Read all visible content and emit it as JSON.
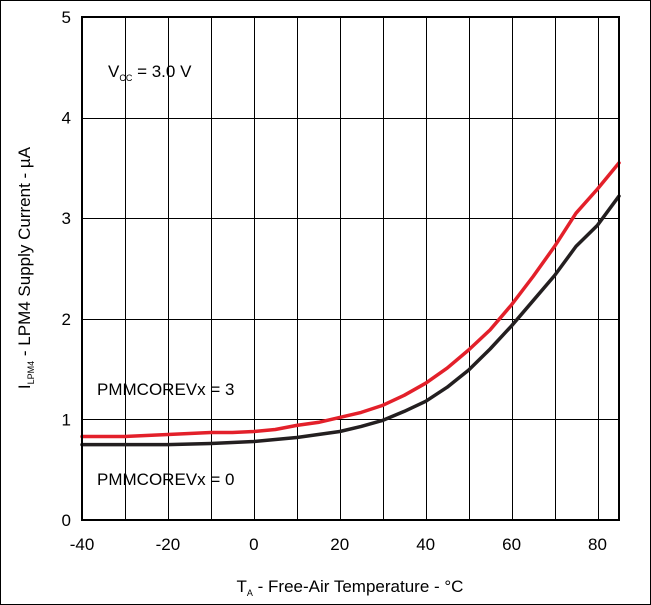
{
  "chart_data": {
    "type": "line",
    "xlabel": {
      "main": "T",
      "sub": "A",
      "rest": " - Free-Air Temperature - °C"
    },
    "ylabel": {
      "main": "I",
      "sub": "LPM4",
      "rest": " - LPM4 Supply Current - µA"
    },
    "xlim": [
      -40,
      85
    ],
    "ylim": [
      0,
      5
    ],
    "xticks": [
      -40,
      -20,
      0,
      20,
      40,
      60,
      80
    ],
    "xtick_labels": [
      "-40",
      "-20",
      "0",
      "20",
      "40",
      "60",
      "80"
    ],
    "yticks": [
      0,
      1,
      2,
      3,
      4,
      5
    ],
    "ytick_labels": [
      "0",
      "1",
      "2",
      "3",
      "4",
      "5"
    ],
    "grid": true,
    "annotations": {
      "vcc": {
        "main": "V",
        "sub": "CC",
        "rest": " = 3.0 V"
      },
      "series_red": "PMMCOREVx = 3",
      "series_black": "PMMCOREVx = 0"
    },
    "series": [
      {
        "name": "PMMCOREVx = 3",
        "color": "#e3202a",
        "x": [
          -40,
          -30,
          -20,
          -10,
          -5,
          0,
          5,
          10,
          15,
          20,
          25,
          30,
          35,
          40,
          45,
          50,
          55,
          60,
          65,
          70,
          75,
          80,
          85
        ],
        "y": [
          0.83,
          0.83,
          0.85,
          0.87,
          0.87,
          0.88,
          0.9,
          0.94,
          0.97,
          1.02,
          1.07,
          1.14,
          1.24,
          1.36,
          1.51,
          1.69,
          1.89,
          2.14,
          2.42,
          2.72,
          3.05,
          3.29,
          3.55
        ]
      },
      {
        "name": "PMMCOREVx = 0",
        "color": "#231f20",
        "x": [
          -40,
          -30,
          -20,
          -10,
          -5,
          0,
          5,
          10,
          15,
          20,
          25,
          30,
          35,
          40,
          45,
          50,
          55,
          60,
          65,
          70,
          75,
          80,
          85
        ],
        "y": [
          0.75,
          0.75,
          0.75,
          0.76,
          0.77,
          0.78,
          0.8,
          0.82,
          0.85,
          0.88,
          0.93,
          0.99,
          1.08,
          1.18,
          1.32,
          1.49,
          1.7,
          1.93,
          2.18,
          2.43,
          2.72,
          2.93,
          3.22
        ]
      }
    ]
  }
}
